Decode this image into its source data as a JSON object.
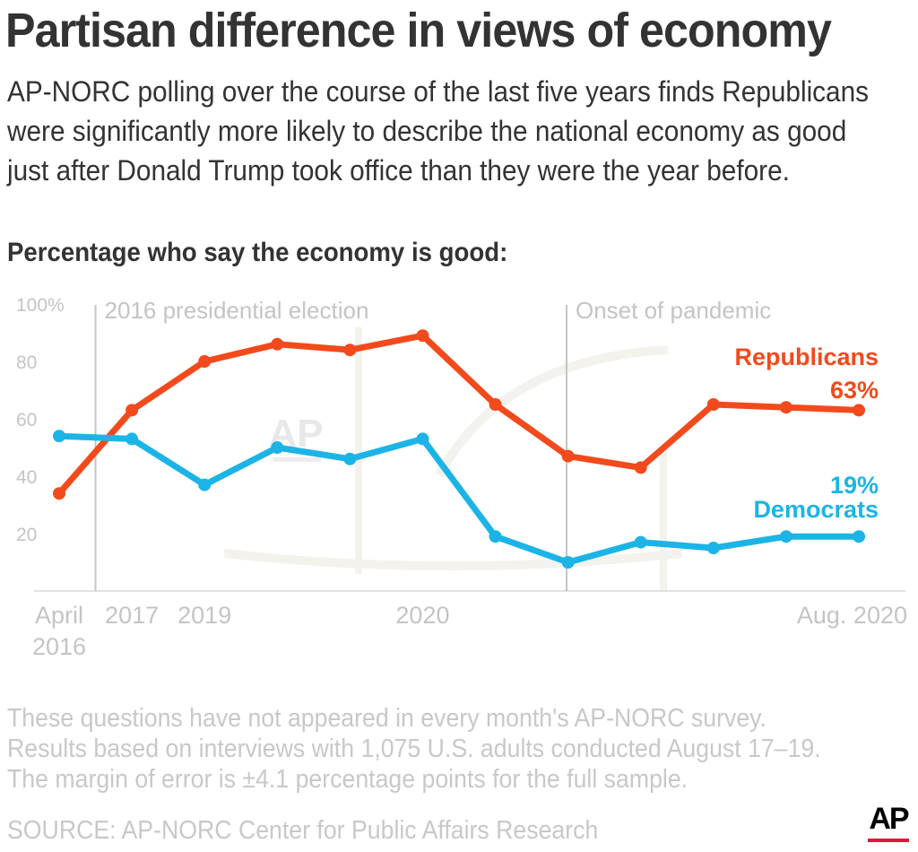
{
  "title": "Partisan difference in views of economy",
  "subtitle": "AP-NORC polling over the course of the last five years finds Republicans were significantly more likely to describe the national economy as good just after Donald Trump took office than they were the year before.",
  "chart_heading": "Percentage who say the economy is good:",
  "colors": {
    "republicans": "#f24a1c",
    "democrats": "#1cb4e6",
    "grid": "#d9d9d9",
    "event_line": "#c4c4c4",
    "label_gray": "#c4c4c4",
    "ap_bar": "#e0163b"
  },
  "chart_data": {
    "type": "line",
    "title": "Percentage who say the economy is good:",
    "xlabel": "",
    "ylabel": "",
    "ylim": [
      0,
      100
    ],
    "y_ticks": [
      {
        "value": 100,
        "label": "100%"
      },
      {
        "value": 80,
        "label": "80"
      },
      {
        "value": 60,
        "label": "60"
      },
      {
        "value": 40,
        "label": "40"
      },
      {
        "value": 20,
        "label": "20"
      }
    ],
    "x": [
      0,
      1,
      2,
      3,
      4,
      5,
      6,
      7,
      8,
      9,
      10,
      11
    ],
    "x_tick_labels": [
      {
        "index": 0,
        "lines": [
          "April",
          "2016"
        ]
      },
      {
        "index": 1,
        "lines": [
          "2017"
        ]
      },
      {
        "index": 2,
        "lines": [
          "2019"
        ]
      },
      {
        "index": 5,
        "lines": [
          "2020"
        ]
      },
      {
        "index": 11,
        "lines": [
          "Aug. 2020"
        ]
      }
    ],
    "events": [
      {
        "at": 0.5,
        "label": "2016 presidential election"
      },
      {
        "at": 6.98,
        "label": "Onset of pandemic"
      }
    ],
    "series": [
      {
        "name": "Republicans",
        "key": "republicans",
        "values": [
          34,
          63,
          80,
          86,
          84,
          89,
          65,
          47,
          43,
          65,
          64,
          63
        ],
        "end_label": "63%"
      },
      {
        "name": "Democrats",
        "key": "democrats",
        "values": [
          54,
          53,
          37,
          50,
          46,
          53,
          19,
          10,
          17,
          15,
          19,
          19
        ],
        "end_label": "19%"
      }
    ]
  },
  "notes": [
    "These questions have not appeared in every month's AP-NORC survey.",
    "Results based on interviews with 1,075 U.S. adults conducted August 17–19.",
    "The margin of error is ±4.1 percentage points for the full sample."
  ],
  "source": "SOURCE: AP-NORC Center for Public Affairs Research",
  "watermark": "AP",
  "logo": "AP"
}
